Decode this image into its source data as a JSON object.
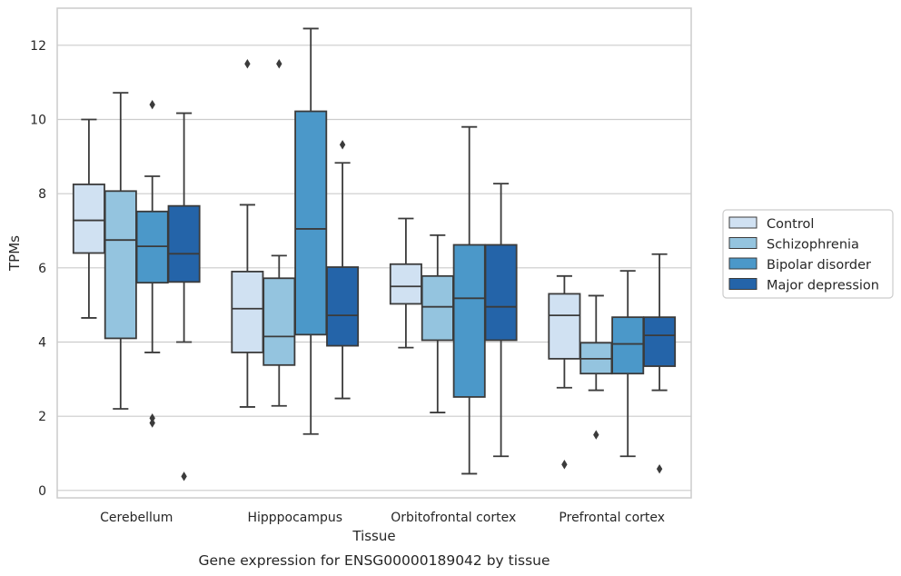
{
  "chart_data": {
    "type": "boxplot",
    "xlabel": "Tissue",
    "ylabel": "TPMs",
    "caption": "Gene expression for ENSG00000189042 by tissue",
    "ylim": [
      -0.2,
      13.0
    ],
    "yticks": [
      "0",
      "2",
      "4",
      "6",
      "8",
      "10",
      "12"
    ],
    "grid": "horizontal",
    "legend_position": "right",
    "categories": [
      "Cerebellum",
      "Hipppocampus",
      "Orbitofrontal cortex",
      "Prefrontal cortex"
    ],
    "series": [
      {
        "name": "Control",
        "color": "#d0e1f2",
        "boxes": [
          {
            "whisker_low": 4.65,
            "q1": 6.4,
            "median": 7.28,
            "q3": 8.25,
            "whisker_high": 10.0,
            "outliers": []
          },
          {
            "whisker_low": 2.25,
            "q1": 3.72,
            "median": 4.9,
            "q3": 5.9,
            "whisker_high": 7.7,
            "outliers": [
              11.5
            ]
          },
          {
            "whisker_low": 3.85,
            "q1": 5.03,
            "median": 5.5,
            "q3": 6.1,
            "whisker_high": 7.33,
            "outliers": []
          },
          {
            "whisker_low": 2.77,
            "q1": 3.55,
            "median": 4.72,
            "q3": 5.3,
            "whisker_high": 5.78,
            "outliers": [
              0.7
            ]
          }
        ]
      },
      {
        "name": "Schizophrenia",
        "color": "#94c4df",
        "boxes": [
          {
            "whisker_low": 2.2,
            "q1": 4.1,
            "median": 6.75,
            "q3": 8.07,
            "whisker_high": 10.72,
            "outliers": []
          },
          {
            "whisker_low": 2.28,
            "q1": 3.38,
            "median": 4.15,
            "q3": 5.72,
            "whisker_high": 6.33,
            "outliers": [
              11.5
            ]
          },
          {
            "whisker_low": 2.1,
            "q1": 4.05,
            "median": 4.95,
            "q3": 5.78,
            "whisker_high": 6.88,
            "outliers": []
          },
          {
            "whisker_low": 2.7,
            "q1": 3.15,
            "median": 3.55,
            "q3": 3.98,
            "whisker_high": 5.25,
            "outliers": [
              1.5
            ]
          }
        ]
      },
      {
        "name": "Bipolar disorder",
        "color": "#4b98c9",
        "boxes": [
          {
            "whisker_low": 3.72,
            "q1": 5.6,
            "median": 6.58,
            "q3": 7.52,
            "whisker_high": 8.47,
            "outliers": [
              10.4,
              1.95,
              1.82
            ]
          },
          {
            "whisker_low": 1.52,
            "q1": 4.2,
            "median": 7.05,
            "q3": 10.22,
            "whisker_high": 12.45,
            "outliers": []
          },
          {
            "whisker_low": 0.45,
            "q1": 2.52,
            "median": 5.18,
            "q3": 6.62,
            "whisker_high": 9.8,
            "outliers": []
          },
          {
            "whisker_low": 0.92,
            "q1": 3.15,
            "median": 3.95,
            "q3": 4.67,
            "whisker_high": 5.92,
            "outliers": []
          }
        ]
      },
      {
        "name": "Major depression",
        "color": "#2464a9",
        "boxes": [
          {
            "whisker_low": 4.0,
            "q1": 5.62,
            "median": 6.38,
            "q3": 7.67,
            "whisker_high": 10.17,
            "outliers": [
              0.38
            ]
          },
          {
            "whisker_low": 2.48,
            "q1": 3.9,
            "median": 4.72,
            "q3": 6.02,
            "whisker_high": 8.83,
            "outliers": [
              9.32
            ]
          },
          {
            "whisker_low": 0.92,
            "q1": 4.05,
            "median": 4.95,
            "q3": 6.62,
            "whisker_high": 8.27,
            "outliers": []
          },
          {
            "whisker_low": 2.7,
            "q1": 3.35,
            "median": 4.18,
            "q3": 4.67,
            "whisker_high": 6.37,
            "outliers": [
              0.58
            ]
          }
        ]
      }
    ]
  }
}
